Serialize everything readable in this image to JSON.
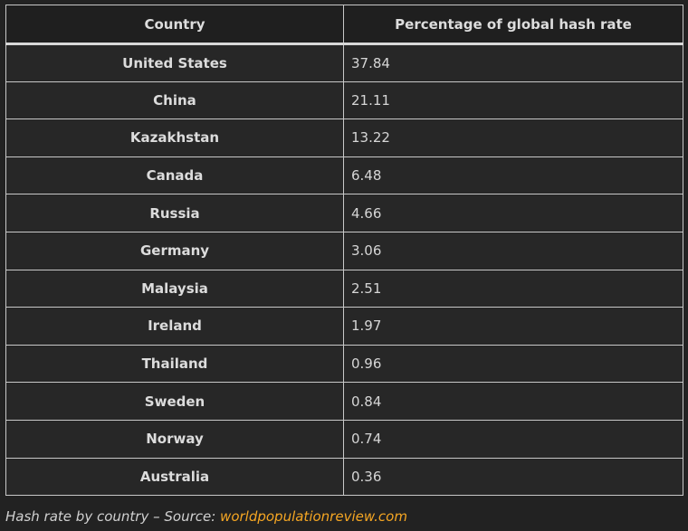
{
  "table": {
    "headers": [
      "Country",
      "Percentage of global hash rate"
    ],
    "rows": [
      {
        "country": "United States",
        "value": "37.84"
      },
      {
        "country": "China",
        "value": "21.11"
      },
      {
        "country": "Kazakhstan",
        "value": "13.22"
      },
      {
        "country": "Canada",
        "value": "6.48"
      },
      {
        "country": "Russia",
        "value": "4.66"
      },
      {
        "country": "Germany",
        "value": "3.06"
      },
      {
        "country": "Malaysia",
        "value": "2.51"
      },
      {
        "country": "Ireland",
        "value": "1.97"
      },
      {
        "country": "Thailand",
        "value": "0.96"
      },
      {
        "country": "Sweden",
        "value": "0.84"
      },
      {
        "country": "Norway",
        "value": "0.74"
      },
      {
        "country": "Australia",
        "value": "0.36"
      }
    ]
  },
  "caption": {
    "text": "Hash rate by country – Source: ",
    "link_text": "worldpopulationreview.com",
    "link_color": "#f5a623"
  },
  "colors": {
    "background": "#222222",
    "border": "#c8c8c8"
  }
}
